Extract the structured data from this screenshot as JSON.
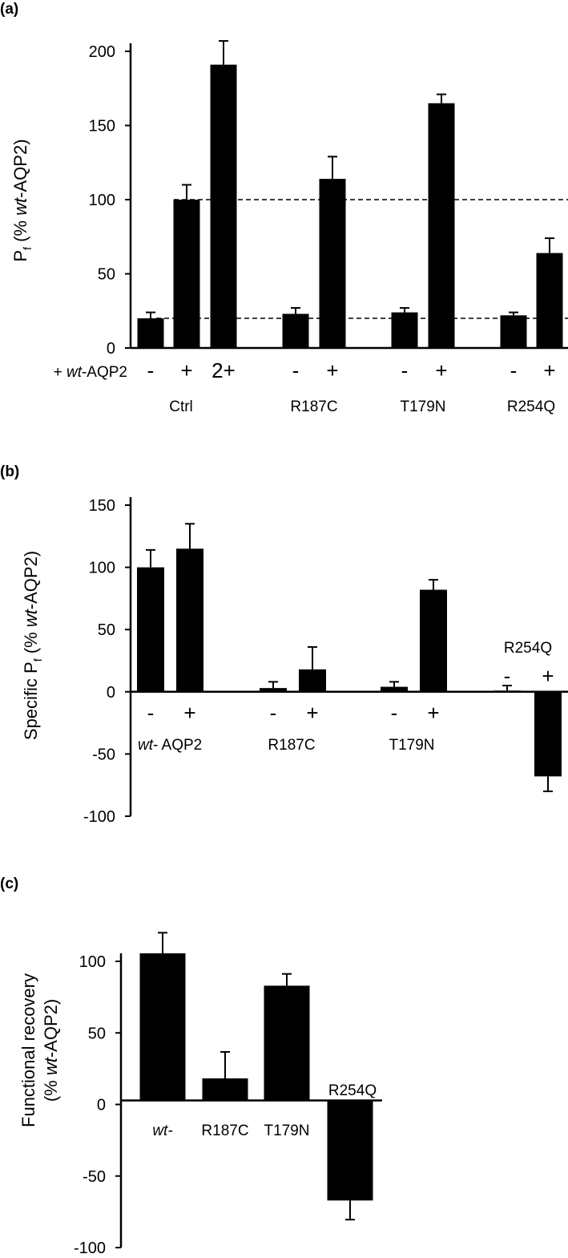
{
  "chart_data": [
    {
      "type": "bar",
      "panel_label": "(a)",
      "ylabel": {
        "main": "P",
        "sub": "f",
        "pre": "(% ",
        "italic": "wt",
        "post": "-AQP2)"
      },
      "ylim": [
        0,
        210
      ],
      "yticks": [
        "0",
        "50",
        "100",
        "150",
        "200"
      ],
      "row_label": {
        "pre": "+ ",
        "italic": "wt",
        "post": "-AQP2"
      },
      "groups": [
        {
          "name": "Ctrl",
          "bars": [
            {
              "sign": "-",
              "value": 20,
              "error": 4
            },
            {
              "sign": "+",
              "value": 100,
              "error": 10
            },
            {
              "sign": "2+",
              "value": 191,
              "error": 16
            }
          ]
        },
        {
          "name": "R187C",
          "bars": [
            {
              "sign": "-",
              "value": 23,
              "error": 4
            },
            {
              "sign": "+",
              "value": 114,
              "error": 15
            }
          ]
        },
        {
          "name": "T179N",
          "bars": [
            {
              "sign": "-",
              "value": 24,
              "error": 3
            },
            {
              "sign": "+",
              "value": 165,
              "error": 6
            }
          ]
        },
        {
          "name": "R254Q",
          "bars": [
            {
              "sign": "-",
              "value": 22,
              "error": 2
            },
            {
              "sign": "+",
              "value": 64,
              "error": 10
            }
          ]
        }
      ],
      "reference_lines": [
        100,
        20
      ]
    },
    {
      "type": "bar",
      "panel_label": "(b)",
      "ylabel": {
        "pre_word": "Specific ",
        "main": "P",
        "sub": "f",
        "pre": "(% ",
        "italic": "wt",
        "post": "-AQP2)"
      },
      "ylim": [
        -100,
        150
      ],
      "yticks": [
        "-100",
        "-50",
        "0",
        "50",
        "100",
        "150"
      ],
      "groups": [
        {
          "name_italic": "wt",
          "name": "- AQP2",
          "bars": [
            {
              "sign": "-",
              "value": 100,
              "error": 14
            },
            {
              "sign": "+",
              "value": 115,
              "error": 20
            }
          ]
        },
        {
          "name": "R187C",
          "bars": [
            {
              "sign": "-",
              "value": 3,
              "error": 5
            },
            {
              "sign": "+",
              "value": 18,
              "error": 18
            }
          ]
        },
        {
          "name": "T179N",
          "bars": [
            {
              "sign": "-",
              "value": 4,
              "error": 4
            },
            {
              "sign": "+",
              "value": 82,
              "error": 8
            }
          ]
        },
        {
          "name": "R254Q",
          "bars": [
            {
              "sign": "-",
              "value": 1,
              "error": 4
            },
            {
              "sign": "+",
              "value": -68,
              "error": 12
            }
          ]
        }
      ]
    },
    {
      "type": "bar",
      "panel_label": "(c)",
      "ylabel": {
        "line1": "Functional recovery",
        "pre": "(% ",
        "italic": "wt",
        "post": "-AQP2)"
      },
      "ylim": [
        -100,
        115
      ],
      "yticks": [
        "-100",
        "-50",
        "0",
        "50",
        "100"
      ],
      "bars": [
        {
          "name_italic": "wt-",
          "value": 100,
          "error": 14
        },
        {
          "name": "R187C",
          "value": 15,
          "error": 18
        },
        {
          "name": "T179N",
          "value": 78,
          "error": 8
        },
        {
          "name": "R254Q",
          "value": -68,
          "error": 13
        }
      ]
    }
  ]
}
